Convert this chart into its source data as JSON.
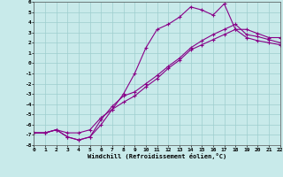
{
  "xlabel": "Windchill (Refroidissement éolien,°C)",
  "bg_color": "#c8eaea",
  "grid_color": "#9ecece",
  "line_color": "#880088",
  "xlim": [
    0,
    22
  ],
  "ylim": [
    -8,
    6
  ],
  "xticks": [
    0,
    1,
    2,
    3,
    4,
    5,
    6,
    7,
    8,
    9,
    10,
    11,
    12,
    13,
    14,
    15,
    16,
    17,
    18,
    19,
    20,
    21,
    22
  ],
  "yticks": [
    -8,
    -7,
    -6,
    -5,
    -4,
    -3,
    -2,
    -1,
    0,
    1,
    2,
    3,
    4,
    5,
    6
  ],
  "line1_x": [
    0,
    1,
    2,
    3,
    4,
    5,
    6,
    7,
    8,
    9,
    10,
    11,
    12,
    13,
    14,
    15,
    16,
    17,
    18,
    19,
    20,
    21,
    22
  ],
  "line1_y": [
    -6.8,
    -6.8,
    -6.5,
    -7.2,
    -7.5,
    -7.2,
    -6.0,
    -4.5,
    -3.0,
    -1.0,
    1.5,
    3.3,
    3.8,
    4.5,
    5.5,
    5.2,
    4.7,
    5.8,
    3.3,
    3.3,
    2.9,
    2.5,
    2.5
  ],
  "line2_x": [
    0,
    1,
    2,
    3,
    4,
    5,
    6,
    7,
    8,
    9,
    10,
    11,
    12,
    13,
    14,
    15,
    16,
    17,
    18,
    19,
    20,
    21,
    22
  ],
  "line2_y": [
    -6.8,
    -6.8,
    -6.5,
    -7.2,
    -7.5,
    -7.2,
    -5.5,
    -4.2,
    -3.2,
    -2.8,
    -2.0,
    -1.2,
    -0.3,
    0.5,
    1.5,
    2.2,
    2.8,
    3.3,
    3.8,
    2.8,
    2.6,
    2.3,
    2.0
  ],
  "line3_x": [
    0,
    1,
    2,
    3,
    4,
    5,
    6,
    7,
    8,
    9,
    10,
    11,
    12,
    13,
    14,
    15,
    16,
    17,
    18,
    19,
    20,
    21,
    22
  ],
  "line3_y": [
    -6.8,
    -6.8,
    -6.5,
    -6.8,
    -6.8,
    -6.5,
    -5.3,
    -4.5,
    -3.8,
    -3.2,
    -2.3,
    -1.5,
    -0.5,
    0.3,
    1.3,
    1.8,
    2.3,
    2.8,
    3.3,
    2.5,
    2.2,
    2.0,
    1.8
  ]
}
